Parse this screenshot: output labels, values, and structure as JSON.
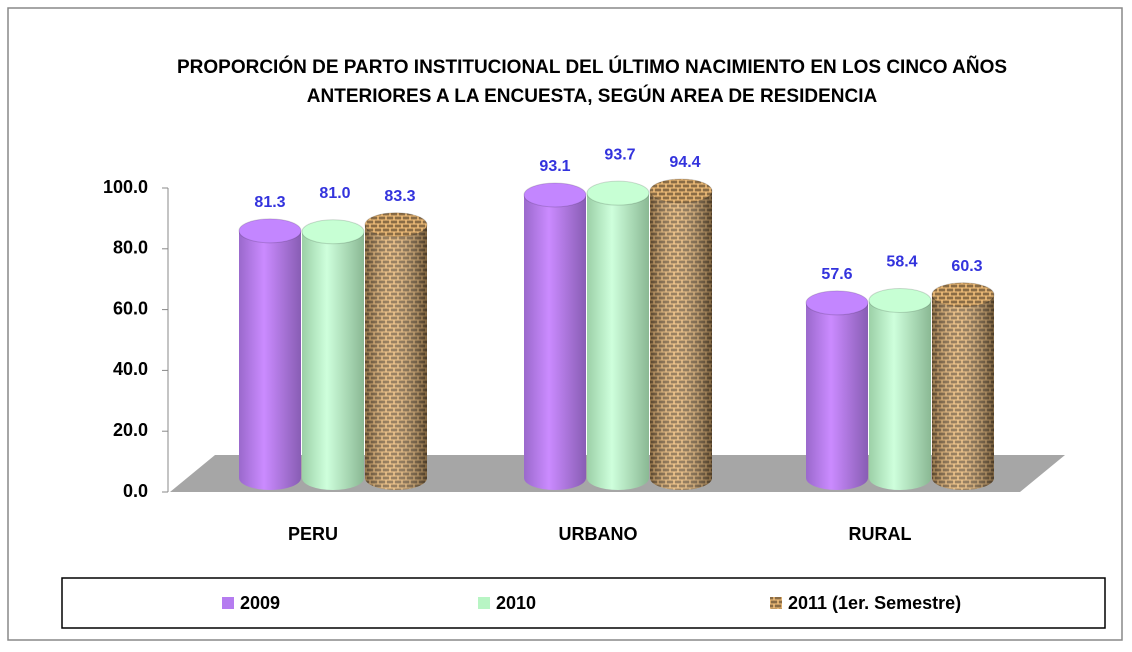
{
  "chart_data": {
    "type": "bar",
    "title": [
      "PROPORCIÓN DE PARTO INSTITUCIONAL DEL ÚLTIMO NACIMIENTO EN LOS CINCO AÑOS",
      "ANTERIORES  A LA ENCUESTA, SEGÚN AREA DE RESIDENCIA"
    ],
    "categories": [
      "PERU",
      "URBANO",
      "RURAL"
    ],
    "series": [
      {
        "name": "2009",
        "color": "#b57cf0",
        "values": [
          81.3,
          93.1,
          57.6
        ],
        "value_labels": [
          "81.3",
          "93.1",
          "57.6"
        ]
      },
      {
        "name": "2010",
        "color": "#b8f5c4",
        "values": [
          81.0,
          93.7,
          58.4
        ],
        "value_labels": [
          "81.0",
          "93.7",
          "58.4"
        ]
      },
      {
        "name": "2011 (1er. Semestre)",
        "color": "#c49a62",
        "values": [
          83.3,
          94.4,
          60.3
        ],
        "value_labels": [
          "83.3",
          "94.4",
          "60.3"
        ]
      }
    ],
    "ylim": [
      0,
      100
    ],
    "yticks": [
      {
        "value": 0,
        "label": "0.0"
      },
      {
        "value": 20,
        "label": "20.0"
      },
      {
        "value": 40,
        "label": "40.0"
      },
      {
        "value": 60,
        "label": "60.0"
      },
      {
        "value": 80,
        "label": "80.0"
      },
      {
        "value": 100,
        "label": "100.0"
      }
    ],
    "legend": "bottom"
  }
}
